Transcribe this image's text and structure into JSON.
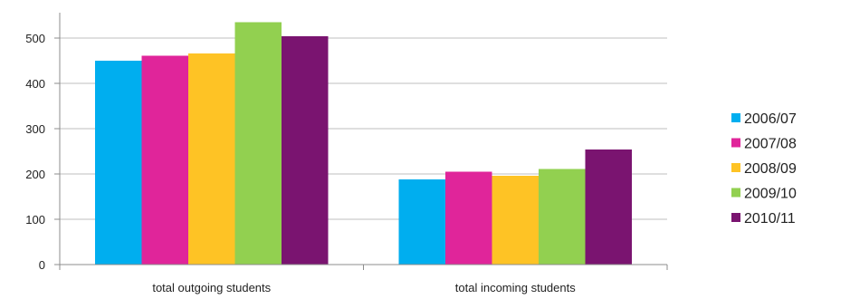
{
  "chart_data": {
    "type": "bar",
    "title": "",
    "xlabel": "",
    "ylabel": "",
    "categories": [
      "total outgoing students",
      "total incoming students"
    ],
    "series": [
      {
        "name": "2006/07",
        "color": "#00aeef",
        "values": [
          450,
          188
        ]
      },
      {
        "name": "2007/08",
        "color": "#e0259a",
        "values": [
          461,
          205
        ]
      },
      {
        "name": "2008/09",
        "color": "#fec325",
        "values": [
          466,
          196
        ]
      },
      {
        "name": "2009/10",
        "color": "#92d050",
        "values": [
          535,
          211
        ]
      },
      {
        "name": "2010/11",
        "color": "#7a1470",
        "values": [
          504,
          254
        ]
      }
    ],
    "ylim": [
      0,
      500
    ],
    "yticks": [
      "0",
      "100",
      "200",
      "300",
      "400",
      "500"
    ],
    "grid": true,
    "legend_position": "right"
  }
}
